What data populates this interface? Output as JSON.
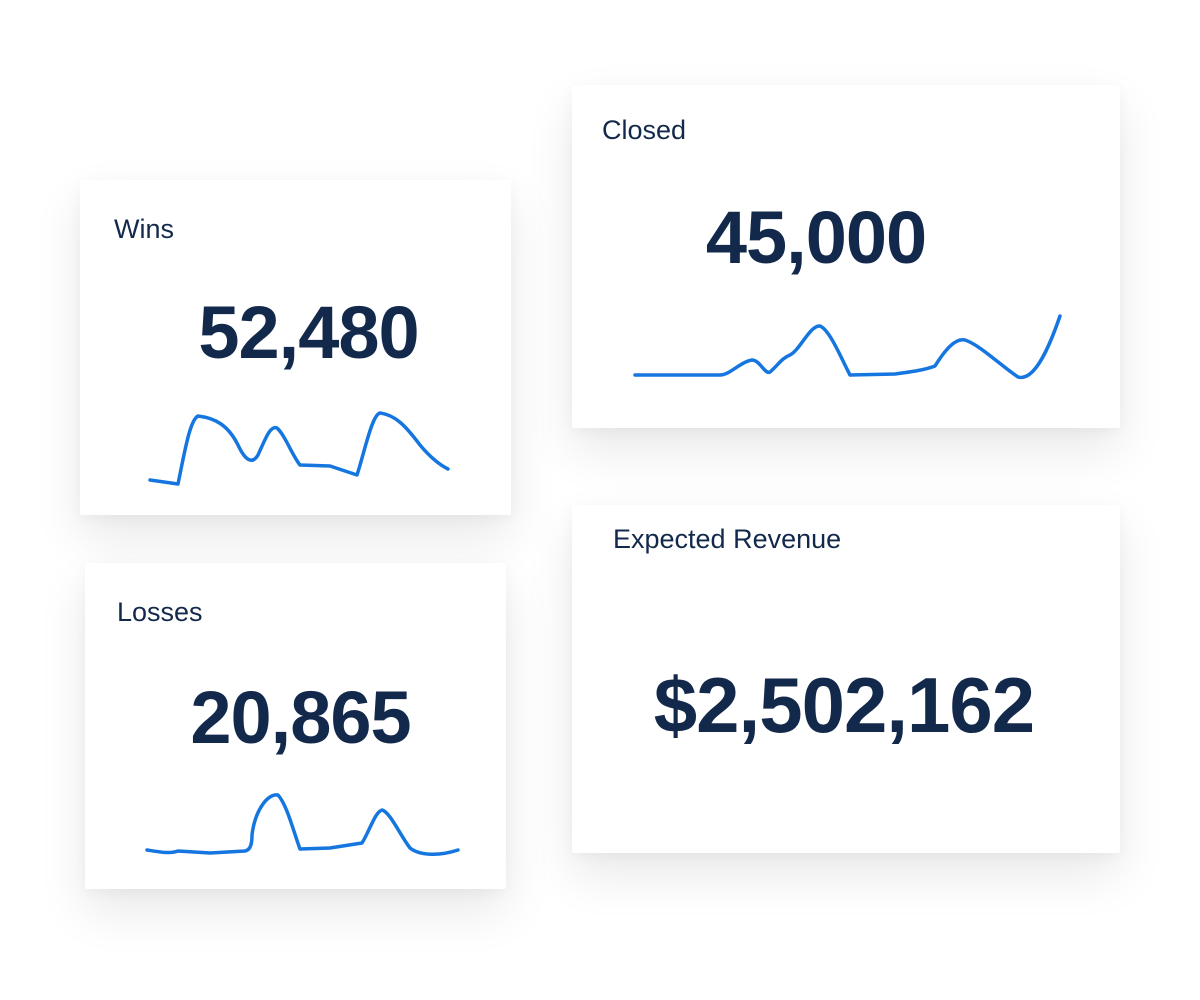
{
  "cards": [
    {
      "label": "Wins",
      "value": "52,480"
    },
    {
      "label": "Closed",
      "value": "45,000"
    },
    {
      "label": "Losses",
      "value": "20,865"
    },
    {
      "label": "Expected Revenue",
      "value": "$2,502,162"
    }
  ]
}
